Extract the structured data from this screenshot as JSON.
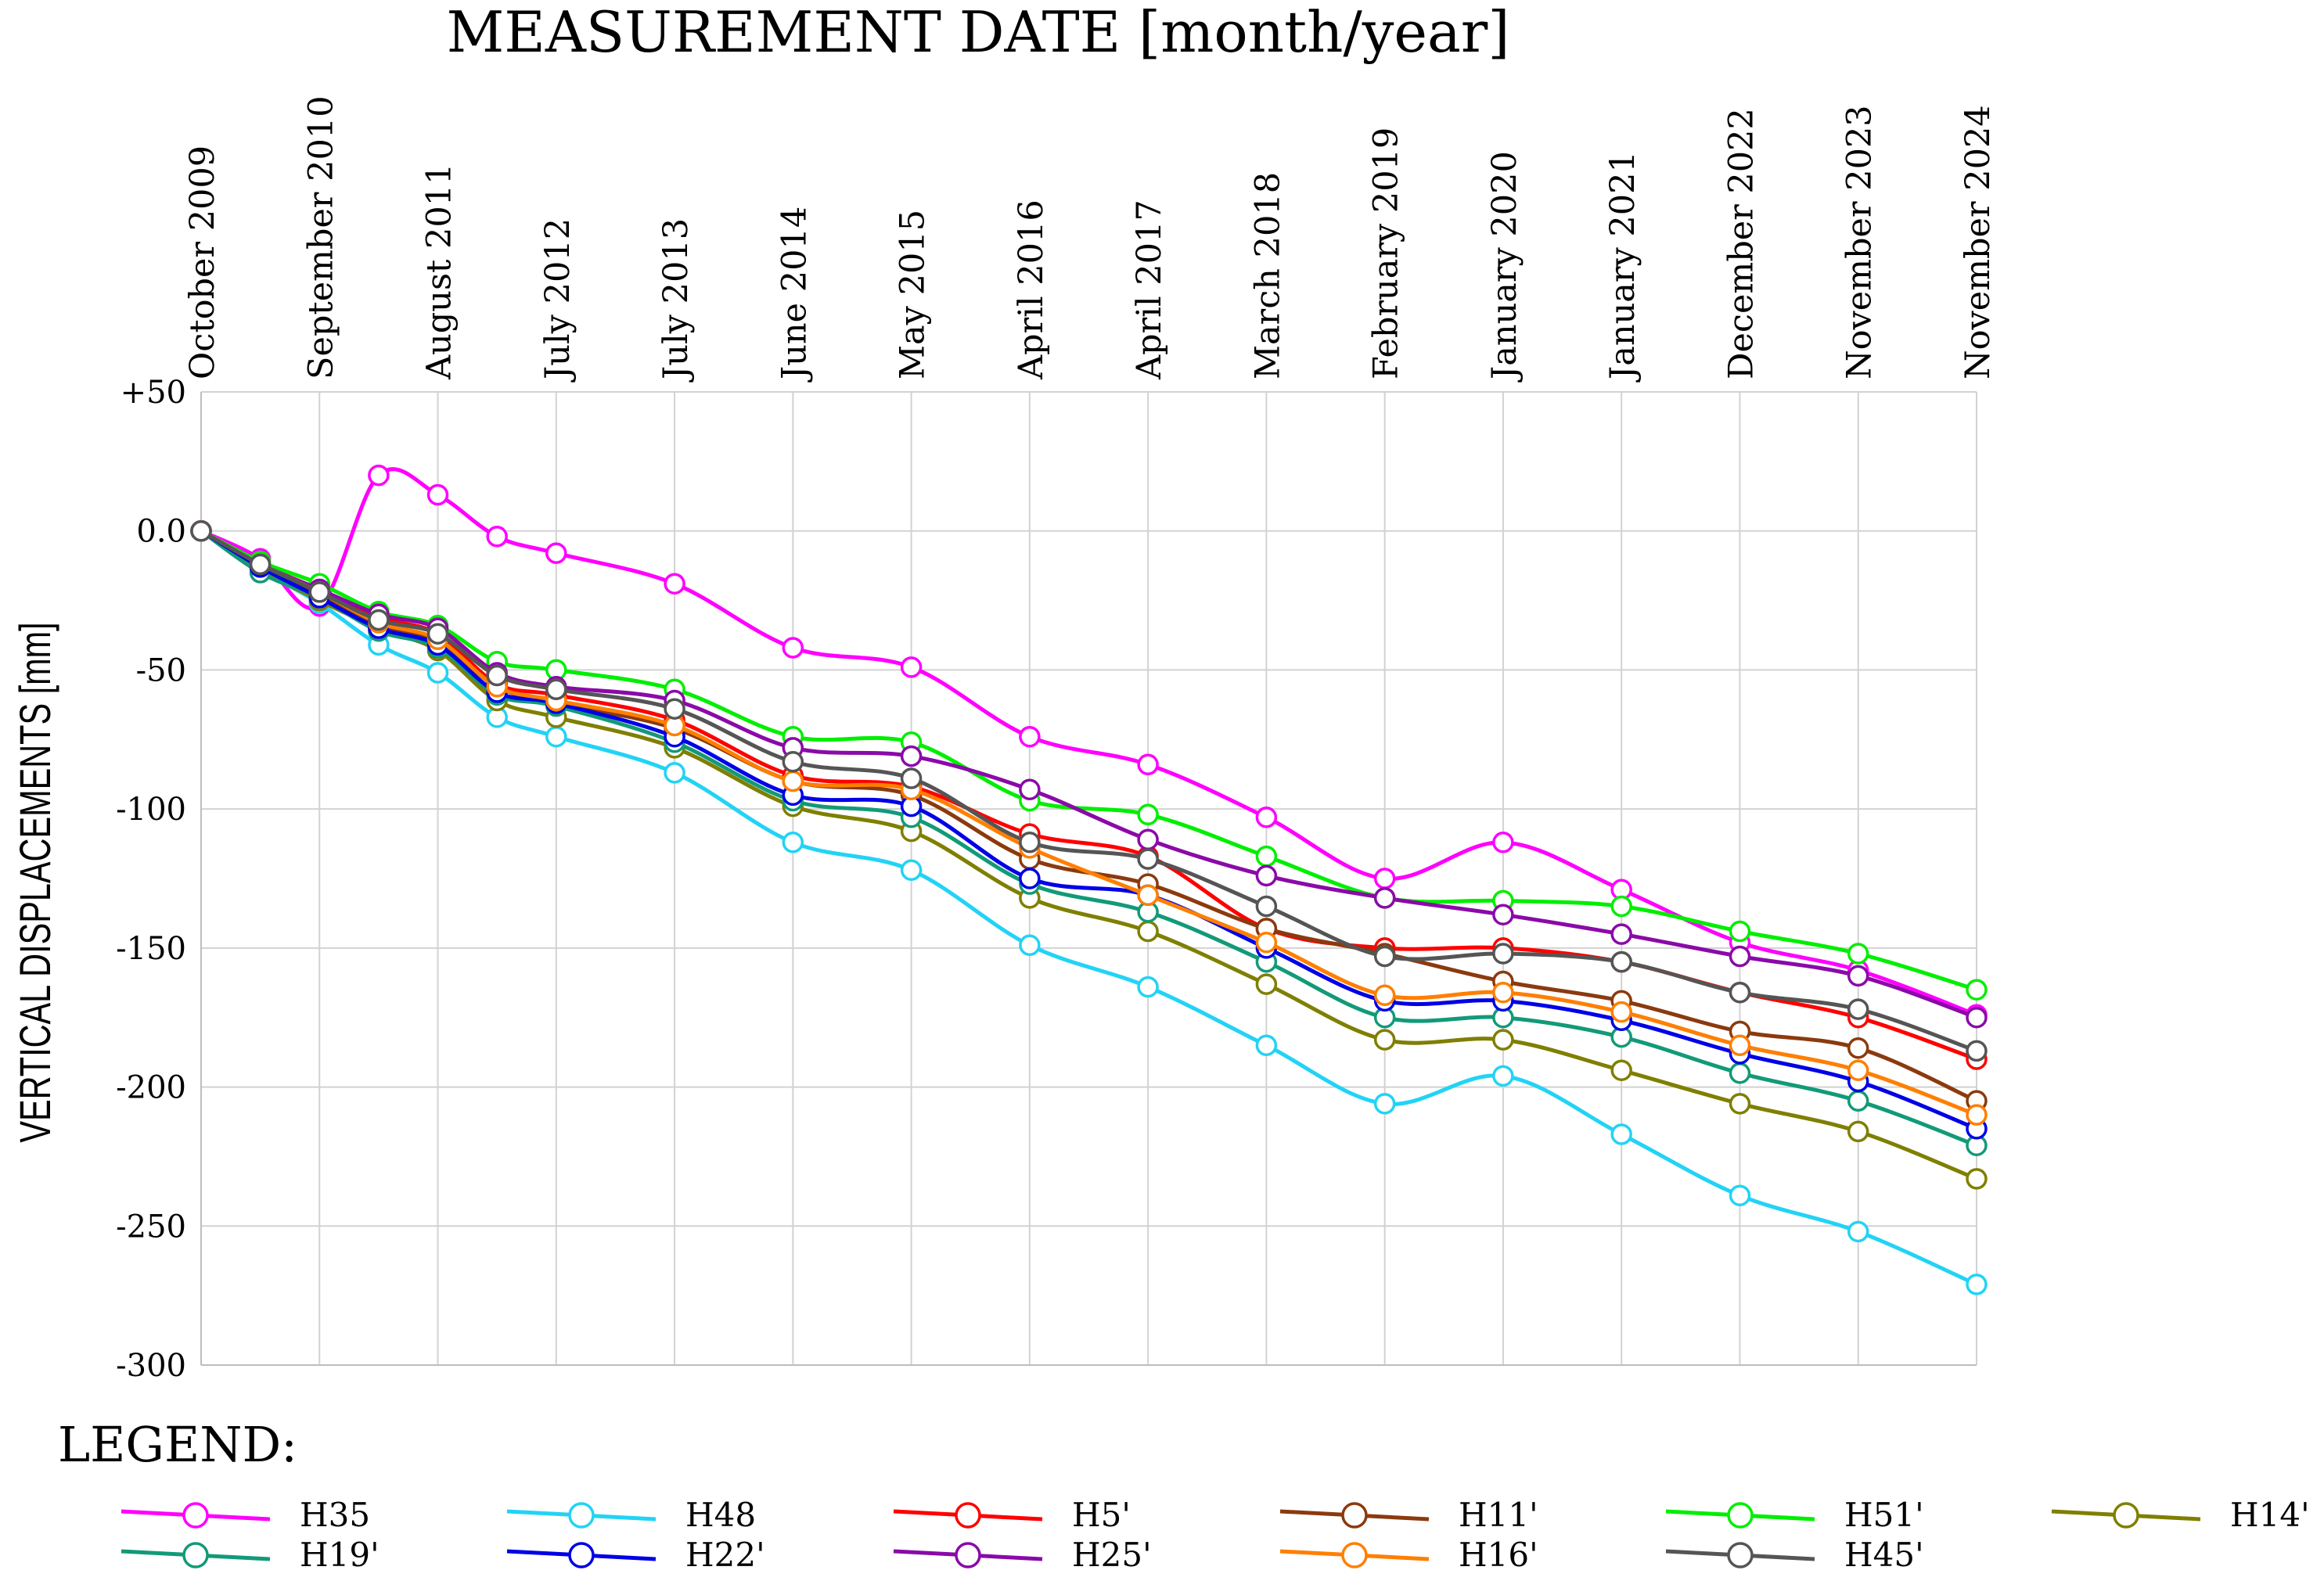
{
  "chart_data": {
    "type": "line",
    "title": "MEASUREMENT DATE  [month/year]",
    "ylabel": "VERTICAL DISPLACEMENTS [mm]",
    "xlabel": "",
    "legend_title": "LEGEND:",
    "legend_position": "bottom",
    "grid": true,
    "ylim": [
      -300,
      50
    ],
    "yticks": [
      {
        "value": 50,
        "label": "+50"
      },
      {
        "value": 0,
        "label": "0.0"
      },
      {
        "value": -50,
        "label": "-50"
      },
      {
        "value": -100,
        "label": "-100"
      },
      {
        "value": -150,
        "label": "-150"
      },
      {
        "value": -200,
        "label": "-200"
      },
      {
        "value": -250,
        "label": "-250"
      },
      {
        "value": -300,
        "label": "-300"
      }
    ],
    "categories": [
      "October 2009",
      "September 2010",
      "August 2011",
      "July 2012",
      "July 2013",
      "June 2014",
      "May 2015",
      "April 2016",
      "April 2017",
      "March 2018",
      "February 2019",
      "January 2020",
      "January 2021",
      "December 2022",
      "November 2023",
      "November 2024"
    ],
    "x": [
      0,
      0.5,
      1,
      1.5,
      2,
      2.5,
      3,
      4,
      5,
      6,
      7,
      8,
      9,
      10,
      11,
      12,
      13,
      14,
      15
    ],
    "series": [
      {
        "name": "H35",
        "color": "#ff00ff",
        "values": [
          0,
          -10,
          -27,
          20,
          13,
          -2,
          -8,
          -19,
          -42,
          -49,
          -74,
          -84,
          -103,
          -125,
          -112,
          -129,
          -148,
          -158,
          -174
        ]
      },
      {
        "name": "H48",
        "color": "#22d3f5",
        "values": [
          0,
          -14,
          -26,
          -41,
          -51,
          -67,
          -74,
          -87,
          -112,
          -122,
          -149,
          -164,
          -185,
          -206,
          -196,
          -217,
          -239,
          -252,
          -271
        ]
      },
      {
        "name": "H5'",
        "color": "#ff0000",
        "values": [
          0,
          -12,
          -21,
          -31,
          -37,
          -55,
          -59,
          -68,
          -88,
          -92,
          -109,
          -117,
          -143,
          -150,
          -150,
          -155,
          -166,
          -175,
          -190
        ]
      },
      {
        "name": "H11'",
        "color": "#8b3a0e",
        "values": [
          0,
          -12,
          -23,
          -34,
          -40,
          -56,
          -62,
          -71,
          -90,
          -95,
          -118,
          -127,
          -143,
          -152,
          -162,
          -169,
          -180,
          -186,
          -205
        ]
      },
      {
        "name": "H51'",
        "color": "#00ee00",
        "values": [
          0,
          -11,
          -19,
          -29,
          -34,
          -47,
          -50,
          -57,
          -74,
          -76,
          -97,
          -102,
          -117,
          -132,
          -133,
          -135,
          -144,
          -152,
          -165
        ]
      },
      {
        "name": "H14'",
        "color": "#7f7f00",
        "values": [
          0,
          -14,
          -25,
          -35,
          -43,
          -61,
          -67,
          -78,
          -99,
          -108,
          -132,
          -144,
          -163,
          -183,
          -183,
          -194,
          -206,
          -216,
          -233
        ]
      },
      {
        "name": "H19'",
        "color": "#129a78",
        "values": [
          0,
          -15,
          -24,
          -36,
          -42,
          -59,
          -63,
          -76,
          -97,
          -103,
          -127,
          -137,
          -155,
          -175,
          -175,
          -182,
          -195,
          -205,
          -221
        ]
      },
      {
        "name": "H22'",
        "color": "#0000e6",
        "values": [
          0,
          -13,
          -24,
          -35,
          -41,
          -58,
          -62,
          -74,
          -95,
          -99,
          -125,
          -131,
          -150,
          -169,
          -169,
          -176,
          -188,
          -198,
          -215
        ]
      },
      {
        "name": "H25'",
        "color": "#8a0aa8",
        "values": [
          0,
          -12,
          -21,
          -30,
          -35,
          -51,
          -56,
          -61,
          -78,
          -81,
          -93,
          -111,
          -124,
          -132,
          -138,
          -145,
          -153,
          -160,
          -175
        ]
      },
      {
        "name": "H16'",
        "color": "#ff7f00",
        "values": [
          0,
          -12,
          -22,
          -33,
          -39,
          -56,
          -61,
          -70,
          -90,
          -93,
          -114,
          -131,
          -148,
          -167,
          -166,
          -173,
          -185,
          -194,
          -210
        ]
      },
      {
        "name": "H45'",
        "color": "#555555",
        "values": [
          0,
          -12,
          -22,
          -32,
          -37,
          -52,
          -57,
          -64,
          -83,
          -89,
          -112,
          -118,
          -135,
          -153,
          -152,
          -155,
          -166,
          -172,
          -187
        ]
      }
    ]
  }
}
